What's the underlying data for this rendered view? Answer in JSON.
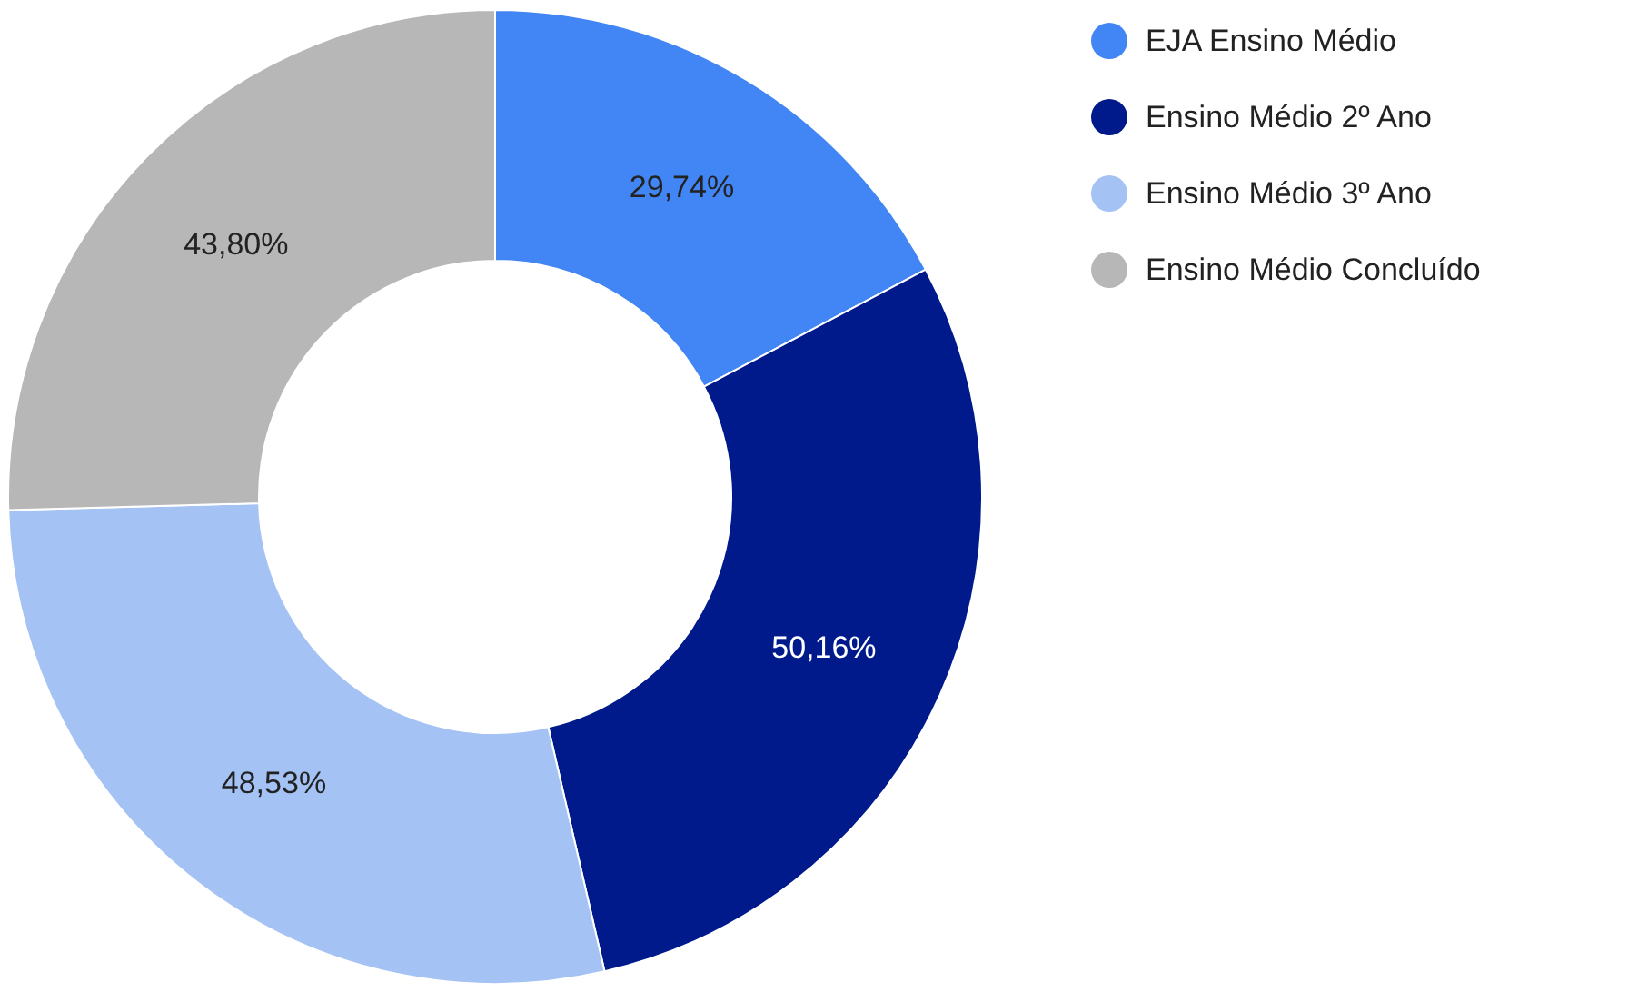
{
  "chart_data": {
    "type": "donut",
    "categories": [
      "EJA Ensino Médio",
      "Ensino Médio 2º Ano",
      "Ensino Médio 3º Ano",
      "Ensino Médio Concluído"
    ],
    "values": [
      29.74,
      50.16,
      48.53,
      43.8
    ],
    "colors": [
      "#4285f4",
      "#001a8c",
      "#a4c2f4",
      "#b7b7b7"
    ],
    "value_labels": [
      "29,74%",
      "50,16%",
      "48,53%",
      "43,80%"
    ],
    "legend": "top right"
  }
}
